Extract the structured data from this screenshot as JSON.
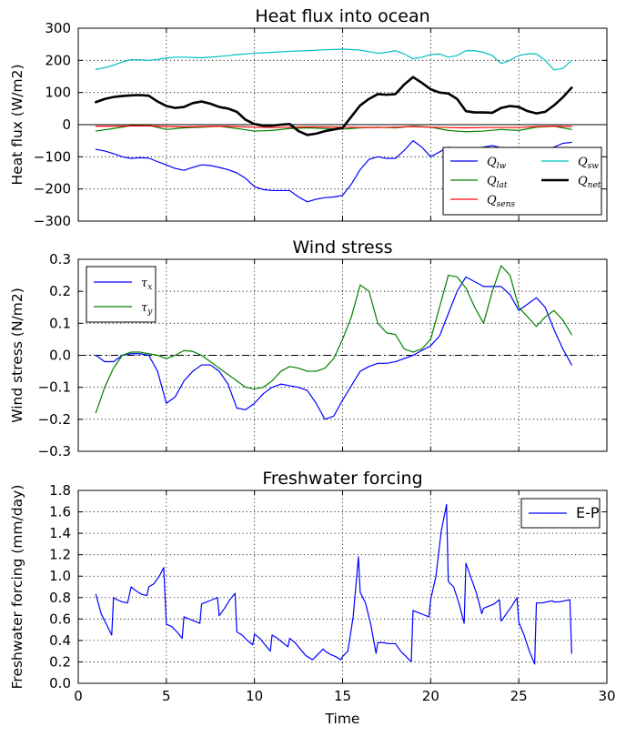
{
  "chart_data": [
    {
      "type": "line",
      "title": "Heat flux into ocean",
      "xlabel": "",
      "ylabel": "Heat flux (W/m2)",
      "xlim": [
        0,
        30
      ],
      "ylim": [
        -300,
        300
      ],
      "xticks": [
        0,
        5,
        10,
        15,
        20,
        25,
        30
      ],
      "yticks": [
        -300,
        -200,
        -100,
        0,
        100,
        200,
        300
      ],
      "xtick_labels_shown": false,
      "grid": true,
      "zero_line": true,
      "legend_position": "lower-right",
      "legend_columns": 2,
      "series": [
        {
          "name": "Q_lw",
          "color": "#0000ff",
          "width": 1.2,
          "x": [
            1,
            1.5,
            2,
            2.5,
            3,
            3.5,
            4,
            4.5,
            5,
            5.5,
            6,
            6.5,
            7,
            7.5,
            8,
            8.5,
            9,
            9.5,
            10,
            10.5,
            11,
            11.5,
            12,
            12.5,
            13,
            13.5,
            14,
            14.5,
            15,
            15.5,
            16,
            16.5,
            17,
            17.5,
            18,
            18.5,
            19,
            19.5,
            20,
            20.5,
            21,
            21.5,
            22,
            22.5,
            23,
            23.5,
            24,
            24.5,
            25,
            25.5,
            26,
            26.5,
            27,
            27.5,
            28
          ],
          "y": [
            -77,
            -82,
            -90,
            -100,
            -105,
            -103,
            -104,
            -115,
            -125,
            -136,
            -142,
            -133,
            -125,
            -127,
            -133,
            -140,
            -150,
            -167,
            -193,
            -202,
            -205,
            -205,
            -205,
            -225,
            -240,
            -232,
            -227,
            -225,
            -220,
            -185,
            -140,
            -108,
            -100,
            -105,
            -105,
            -80,
            -50,
            -70,
            -100,
            -85,
            -70,
            -80,
            -72,
            -75,
            -70,
            -65,
            -72,
            -75,
            -76,
            -82,
            -80,
            -75,
            -70,
            -58,
            -55
          ]
        },
        {
          "name": "Q_lat",
          "color": "#008000",
          "width": 1.2,
          "x": [
            1,
            2,
            3,
            4,
            5,
            6,
            7,
            8,
            9,
            10,
            11,
            12,
            13,
            14,
            15,
            16,
            17,
            18,
            19,
            20,
            21,
            22,
            23,
            24,
            25,
            26,
            27,
            28
          ],
          "y": [
            -20,
            -12,
            -3,
            -2,
            -15,
            -10,
            -8,
            -5,
            -12,
            -20,
            -18,
            -12,
            -10,
            -12,
            -14,
            -10,
            -8,
            -10,
            -5,
            -8,
            -18,
            -22,
            -20,
            -15,
            -18,
            -8,
            -5,
            -15
          ]
        },
        {
          "name": "Q_sens",
          "color": "#ff0000",
          "width": 1.2,
          "x": [
            1,
            2,
            3,
            4,
            5,
            6,
            7,
            8,
            9,
            10,
            11,
            12,
            13,
            14,
            15,
            16,
            17,
            18,
            19,
            20,
            21,
            22,
            23,
            24,
            25,
            26,
            27,
            28
          ],
          "y": [
            -5,
            -5,
            -4,
            -4,
            -6,
            -7,
            -6,
            -5,
            -6,
            -8,
            -9,
            -8,
            -7,
            -7,
            -8,
            -9,
            -9,
            -8,
            -6,
            -8,
            -9,
            -10,
            -9,
            -9,
            -9,
            -6,
            -5,
            -6
          ]
        },
        {
          "name": "Q_sw",
          "color": "#00bfbf",
          "width": 1.2,
          "x": [
            1,
            1.5,
            2,
            2.5,
            3,
            3.5,
            4,
            4.5,
            5,
            5.5,
            6,
            7,
            8,
            9,
            10,
            11,
            12,
            13,
            14,
            15,
            16,
            17,
            17.5,
            18,
            18.5,
            19,
            19.5,
            20,
            20.5,
            21,
            21.5,
            22,
            22.5,
            23,
            23.5,
            24,
            24.5,
            25,
            25.5,
            26,
            26.5,
            27,
            27.5,
            28
          ],
          "y": [
            172,
            177,
            185,
            195,
            202,
            202,
            200,
            203,
            207,
            210,
            210,
            208,
            212,
            218,
            222,
            225,
            228,
            230,
            233,
            235,
            232,
            222,
            225,
            230,
            220,
            205,
            210,
            218,
            220,
            210,
            215,
            230,
            230,
            225,
            215,
            190,
            200,
            215,
            220,
            220,
            200,
            170,
            175,
            200
          ]
        },
        {
          "name": "Q_net",
          "color": "#000000",
          "width": 2.6,
          "x": [
            1,
            1.5,
            2,
            2.5,
            3,
            3.5,
            4,
            4.5,
            5,
            5.5,
            6,
            6.5,
            7,
            7.5,
            8,
            8.5,
            9,
            9.5,
            10,
            10.5,
            11,
            11.5,
            12,
            12.5,
            13,
            13.5,
            14,
            14.5,
            15,
            15.5,
            16,
            16.5,
            17,
            17.5,
            18,
            18.5,
            19,
            19.5,
            20,
            20.5,
            21,
            21.5,
            22,
            22.5,
            23,
            23.5,
            24,
            24.5,
            25,
            25.5,
            26,
            26.5,
            27,
            27.5,
            28
          ],
          "y": [
            70,
            80,
            86,
            89,
            91,
            92,
            90,
            72,
            58,
            52,
            55,
            67,
            72,
            65,
            55,
            50,
            40,
            15,
            2,
            -3,
            -3,
            0,
            2,
            -20,
            -32,
            -28,
            -20,
            -15,
            -10,
            25,
            60,
            80,
            95,
            93,
            95,
            125,
            148,
            130,
            110,
            100,
            97,
            80,
            42,
            38,
            38,
            37,
            52,
            58,
            55,
            42,
            35,
            40,
            60,
            85,
            115
          ]
        }
      ]
    },
    {
      "type": "line",
      "title": "Wind stress",
      "xlabel": "",
      "ylabel": "Wind stress (N/m2)",
      "xlim": [
        0,
        30
      ],
      "ylim": [
        -0.3,
        0.3
      ],
      "xticks": [
        0,
        5,
        10,
        15,
        20,
        25,
        30
      ],
      "yticks": [
        -0.3,
        -0.2,
        -0.1,
        0.0,
        0.1,
        0.2,
        0.3
      ],
      "ytick_labels": [
        "−0.3",
        "−0.2",
        "−0.1",
        "0.0",
        "0.1",
        "0.2",
        "0.3"
      ],
      "xtick_labels_shown": false,
      "grid": true,
      "zero_line": "dash-dot",
      "legend_position": "upper-left",
      "legend_columns": 1,
      "series": [
        {
          "name": "tau_x",
          "color": "#0000ff",
          "width": 1.2,
          "x": [
            1,
            1.5,
            2,
            2.5,
            3,
            3.5,
            4,
            4.5,
            5,
            5.5,
            6,
            6.5,
            7,
            7.5,
            8,
            8.5,
            9,
            9.5,
            10,
            10.5,
            11,
            11.5,
            12,
            12.5,
            13,
            13.5,
            14,
            14.5,
            15,
            15.5,
            16,
            16.5,
            17,
            17.5,
            18,
            18.5,
            19,
            19.5,
            20,
            20.5,
            21,
            21.5,
            22,
            22.5,
            23,
            23.5,
            24,
            24.5,
            25,
            25.5,
            26,
            26.5,
            27,
            27.5,
            28
          ],
          "y": [
            0.0,
            -0.02,
            -0.02,
            0.0,
            0.005,
            0.005,
            0.0,
            -0.05,
            -0.15,
            -0.13,
            -0.08,
            -0.05,
            -0.03,
            -0.03,
            -0.05,
            -0.09,
            -0.165,
            -0.17,
            -0.15,
            -0.12,
            -0.1,
            -0.09,
            -0.095,
            -0.1,
            -0.11,
            -0.15,
            -0.2,
            -0.19,
            -0.14,
            -0.095,
            -0.05,
            -0.035,
            -0.025,
            -0.025,
            -0.02,
            -0.01,
            0.0,
            0.015,
            0.03,
            0.06,
            0.13,
            0.2,
            0.245,
            0.23,
            0.215,
            0.215,
            0.215,
            0.19,
            0.14,
            0.16,
            0.18,
            0.15,
            0.08,
            0.02,
            -0.03
          ]
        },
        {
          "name": "tau_y",
          "color": "#008000",
          "width": 1.2,
          "x": [
            1,
            1.5,
            2,
            2.5,
            3,
            3.5,
            4,
            4.5,
            5,
            5.5,
            6,
            6.5,
            7,
            7.5,
            8,
            8.5,
            9,
            9.5,
            10,
            10.5,
            11,
            11.5,
            12,
            12.5,
            13,
            13.5,
            14,
            14.5,
            15,
            15.5,
            16,
            16.5,
            17,
            17.5,
            18,
            18.5,
            19,
            19.5,
            20,
            20.5,
            21,
            21.5,
            22,
            22.5,
            23,
            23.5,
            24,
            24.5,
            25,
            25.5,
            26,
            26.5,
            27,
            27.5,
            28
          ],
          "y": [
            -0.18,
            -0.1,
            -0.04,
            0.0,
            0.01,
            0.01,
            0.005,
            0.0,
            -0.01,
            0.0,
            0.015,
            0.012,
            0.0,
            -0.02,
            -0.04,
            -0.06,
            -0.08,
            -0.1,
            -0.105,
            -0.1,
            -0.08,
            -0.05,
            -0.035,
            -0.04,
            -0.05,
            -0.05,
            -0.04,
            -0.01,
            0.05,
            0.12,
            0.22,
            0.2,
            0.1,
            0.07,
            0.065,
            0.02,
            0.01,
            0.02,
            0.05,
            0.15,
            0.25,
            0.245,
            0.21,
            0.15,
            0.1,
            0.2,
            0.28,
            0.25,
            0.15,
            0.12,
            0.09,
            0.12,
            0.14,
            0.11,
            0.065
          ]
        }
      ]
    },
    {
      "type": "line",
      "title": "Freshwater forcing",
      "xlabel": "Time",
      "ylabel": "Freshwater forcing (mm/day)",
      "xlim": [
        0,
        30
      ],
      "ylim": [
        0.0,
        1.8
      ],
      "xticks": [
        0,
        5,
        10,
        15,
        20,
        25,
        30
      ],
      "yticks": [
        0.0,
        0.2,
        0.4,
        0.6,
        0.8,
        1.0,
        1.2,
        1.4,
        1.6,
        1.8
      ],
      "ytick_labels": [
        "0.0",
        "0.2",
        "0.4",
        "0.6",
        "0.8",
        "1.0",
        "1.2",
        "1.4",
        "1.6",
        "1.8"
      ],
      "xtick_labels_shown": true,
      "grid": true,
      "zero_line": true,
      "legend_position": "upper-right",
      "legend_columns": 1,
      "series": [
        {
          "name": "E-P",
          "color": "#0000ff",
          "width": 1.2,
          "x": [
            1,
            1.3,
            1.6,
            1.9,
            2.0,
            2.2,
            2.5,
            2.8,
            3.0,
            3.3,
            3.6,
            3.9,
            4.0,
            4.3,
            4.6,
            4.85,
            5.0,
            5.3,
            5.6,
            5.9,
            6.0,
            6.3,
            6.6,
            6.9,
            7.0,
            7.3,
            7.6,
            7.9,
            8.0,
            8.3,
            8.6,
            8.9,
            9.0,
            9.3,
            9.6,
            9.9,
            10.0,
            10.3,
            10.6,
            10.9,
            11.0,
            11.3,
            11.6,
            11.9,
            12.0,
            12.3,
            12.6,
            12.9,
            13.0,
            13.3,
            13.6,
            13.9,
            14.0,
            14.3,
            14.6,
            14.9,
            15.0,
            15.3,
            15.6,
            15.9,
            16.0,
            16.3,
            16.6,
            16.9,
            17.0,
            17.3,
            17.6,
            17.9,
            18.0,
            18.3,
            18.6,
            18.9,
            19.0,
            19.3,
            19.6,
            19.9,
            20.0,
            20.3,
            20.6,
            20.9,
            21.0,
            21.3,
            21.6,
            21.9,
            22.0,
            22.3,
            22.6,
            22.9,
            23.0,
            23.3,
            23.6,
            23.9,
            24.0,
            24.3,
            24.6,
            24.9,
            25.0,
            25.3,
            25.6,
            25.9,
            26.0,
            26.3,
            26.6,
            26.9,
            27.0,
            27.3,
            27.6,
            27.9,
            28.0
          ],
          "y": [
            0.83,
            0.65,
            0.55,
            0.45,
            0.8,
            0.78,
            0.76,
            0.75,
            0.9,
            0.86,
            0.83,
            0.82,
            0.9,
            0.93,
            1.0,
            1.08,
            0.55,
            0.53,
            0.48,
            0.42,
            0.62,
            0.6,
            0.58,
            0.56,
            0.74,
            0.76,
            0.78,
            0.8,
            0.63,
            0.7,
            0.78,
            0.84,
            0.48,
            0.45,
            0.4,
            0.36,
            0.46,
            0.42,
            0.36,
            0.3,
            0.45,
            0.42,
            0.38,
            0.34,
            0.42,
            0.38,
            0.32,
            0.26,
            0.25,
            0.22,
            0.27,
            0.32,
            0.3,
            0.27,
            0.25,
            0.22,
            0.25,
            0.3,
            0.62,
            1.18,
            0.85,
            0.75,
            0.55,
            0.28,
            0.38,
            0.38,
            0.37,
            0.37,
            0.37,
            0.3,
            0.25,
            0.2,
            0.68,
            0.66,
            0.64,
            0.62,
            0.78,
            1.0,
            1.42,
            1.67,
            0.95,
            0.9,
            0.75,
            0.56,
            1.12,
            0.98,
            0.84,
            0.65,
            0.7,
            0.72,
            0.74,
            0.78,
            0.58,
            0.65,
            0.72,
            0.8,
            0.57,
            0.45,
            0.3,
            0.18,
            0.75,
            0.75,
            0.76,
            0.77,
            0.76,
            0.76,
            0.77,
            0.78,
            0.28
          ]
        }
      ]
    }
  ]
}
